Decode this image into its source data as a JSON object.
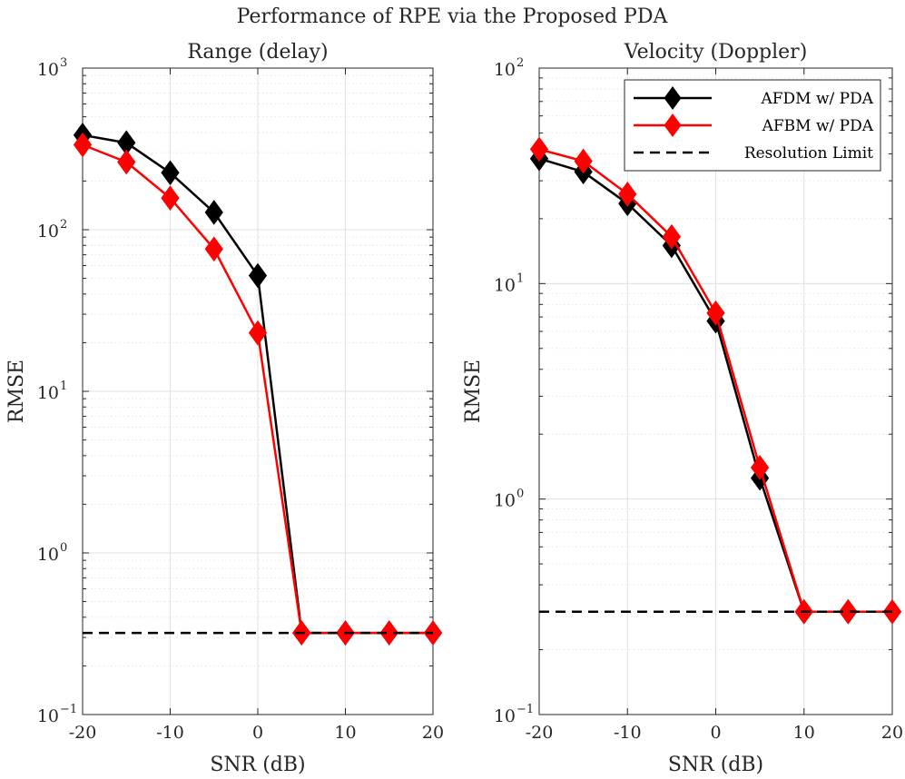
{
  "figure": {
    "suptitle": "Performance of RPE via the Proposed PDA"
  },
  "chart_data": [
    {
      "type": "line",
      "title": "Range (delay)",
      "xlabel": "SNR (dB)",
      "ylabel": "RMSE",
      "yscale": "log",
      "xlim": [
        -20,
        20
      ],
      "ylim": [
        0.1,
        1000
      ],
      "xticks": [
        -20,
        -10,
        0,
        10,
        20
      ],
      "xtick_labels": [
        "-20",
        "-10",
        "0",
        "10",
        "20"
      ],
      "yticks": [
        0.1,
        1,
        10,
        100,
        1000
      ],
      "ytick_labels": [
        {
          "base": "10",
          "exp": "−1"
        },
        {
          "base": "10",
          "exp": "0"
        },
        {
          "base": "10",
          "exp": "1"
        },
        {
          "base": "10",
          "exp": "2"
        },
        {
          "base": "10",
          "exp": "3"
        }
      ],
      "grid": true,
      "x": [
        -20,
        -15,
        -10,
        -5,
        0,
        5,
        10,
        15,
        20
      ],
      "series": [
        {
          "name": "AFDM w/ PDA",
          "color": "#000000",
          "marker": "diamond",
          "values": [
            385,
            345,
            225,
            128,
            52,
            0.32,
            0.32,
            0.32,
            0.32
          ]
        },
        {
          "name": "AFBM w/ PDA",
          "color": "#ff0000",
          "marker": "diamond",
          "values": [
            335,
            262,
            157,
            76,
            23,
            0.32,
            0.32,
            0.32,
            0.32
          ]
        },
        {
          "name": "Resolution Limit",
          "color": "#000000",
          "style": "dashed",
          "x": [
            -20,
            20
          ],
          "values": [
            0.32,
            0.32
          ]
        }
      ],
      "legend": null
    },
    {
      "type": "line",
      "title": "Velocity (Doppler)",
      "xlabel": "SNR (dB)",
      "ylabel": "RMSE",
      "yscale": "log",
      "xlim": [
        -20,
        20
      ],
      "ylim": [
        0.1,
        100
      ],
      "xticks": [
        -20,
        -10,
        0,
        10,
        20
      ],
      "xtick_labels": [
        "-20",
        "-10",
        "0",
        "10",
        "20"
      ],
      "yticks": [
        0.1,
        1,
        10,
        100
      ],
      "ytick_labels": [
        {
          "base": "10",
          "exp": "−1"
        },
        {
          "base": "10",
          "exp": "0"
        },
        {
          "base": "10",
          "exp": "1"
        },
        {
          "base": "10",
          "exp": "2"
        }
      ],
      "grid": true,
      "x": [
        -20,
        -15,
        -10,
        -5,
        0,
        5,
        10,
        15,
        20
      ],
      "series": [
        {
          "name": "AFDM w/ PDA",
          "color": "#000000",
          "marker": "diamond",
          "values": [
            38,
            33,
            23.5,
            15,
            6.7,
            1.25,
            0.3,
            0.3,
            0.3
          ]
        },
        {
          "name": "AFBM w/ PDA",
          "color": "#ff0000",
          "marker": "diamond",
          "values": [
            42,
            37,
            26,
            16.5,
            7.3,
            1.4,
            0.3,
            0.3,
            0.3
          ]
        },
        {
          "name": "Resolution Limit",
          "color": "#000000",
          "style": "dashed",
          "x": [
            -20,
            20
          ],
          "values": [
            0.3,
            0.3
          ]
        }
      ],
      "legend": "top-right"
    }
  ]
}
